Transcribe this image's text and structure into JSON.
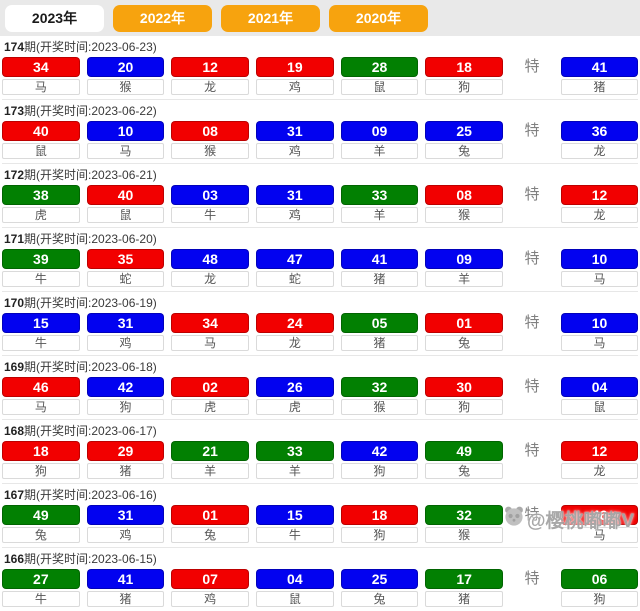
{
  "tabs": [
    {
      "label": "2023年",
      "active": true
    },
    {
      "label": "2022年",
      "active": false
    },
    {
      "label": "2021年",
      "active": false
    },
    {
      "label": "2020年",
      "active": false
    }
  ],
  "te_label": "特",
  "colors": {
    "red": "#f20000",
    "blue": "#0202f0",
    "green": "#028002",
    "tab": "#f7a30e",
    "tabbar_bg": "#e9e9e9"
  },
  "draws": [
    {
      "period": "174",
      "label": "期(开奖时间:2023-06-23)",
      "numbers": [
        {
          "value": "34",
          "color": "red",
          "zodiac": "马"
        },
        {
          "value": "20",
          "color": "blue",
          "zodiac": "猴"
        },
        {
          "value": "12",
          "color": "red",
          "zodiac": "龙"
        },
        {
          "value": "19",
          "color": "red",
          "zodiac": "鸡"
        },
        {
          "value": "28",
          "color": "green",
          "zodiac": "鼠"
        },
        {
          "value": "18",
          "color": "red",
          "zodiac": "狗"
        }
      ],
      "special": {
        "value": "41",
        "color": "blue",
        "zodiac": "猪"
      }
    },
    {
      "period": "173",
      "label": "期(开奖时间:2023-06-22)",
      "numbers": [
        {
          "value": "40",
          "color": "red",
          "zodiac": "鼠"
        },
        {
          "value": "10",
          "color": "blue",
          "zodiac": "马"
        },
        {
          "value": "08",
          "color": "red",
          "zodiac": "猴"
        },
        {
          "value": "31",
          "color": "blue",
          "zodiac": "鸡"
        },
        {
          "value": "09",
          "color": "blue",
          "zodiac": "羊"
        },
        {
          "value": "25",
          "color": "blue",
          "zodiac": "兔"
        }
      ],
      "special": {
        "value": "36",
        "color": "blue",
        "zodiac": "龙"
      }
    },
    {
      "period": "172",
      "label": "期(开奖时间:2023-06-21)",
      "numbers": [
        {
          "value": "38",
          "color": "green",
          "zodiac": "虎"
        },
        {
          "value": "40",
          "color": "red",
          "zodiac": "鼠"
        },
        {
          "value": "03",
          "color": "blue",
          "zodiac": "牛"
        },
        {
          "value": "31",
          "color": "blue",
          "zodiac": "鸡"
        },
        {
          "value": "33",
          "color": "green",
          "zodiac": "羊"
        },
        {
          "value": "08",
          "color": "red",
          "zodiac": "猴"
        }
      ],
      "special": {
        "value": "12",
        "color": "red",
        "zodiac": "龙"
      }
    },
    {
      "period": "171",
      "label": "期(开奖时间:2023-06-20)",
      "numbers": [
        {
          "value": "39",
          "color": "green",
          "zodiac": "牛"
        },
        {
          "value": "35",
          "color": "red",
          "zodiac": "蛇"
        },
        {
          "value": "48",
          "color": "blue",
          "zodiac": "龙"
        },
        {
          "value": "47",
          "color": "blue",
          "zodiac": "蛇"
        },
        {
          "value": "41",
          "color": "blue",
          "zodiac": "猪"
        },
        {
          "value": "09",
          "color": "blue",
          "zodiac": "羊"
        }
      ],
      "special": {
        "value": "10",
        "color": "blue",
        "zodiac": "马"
      }
    },
    {
      "period": "170",
      "label": "期(开奖时间:2023-06-19)",
      "numbers": [
        {
          "value": "15",
          "color": "blue",
          "zodiac": "牛"
        },
        {
          "value": "31",
          "color": "blue",
          "zodiac": "鸡"
        },
        {
          "value": "34",
          "color": "red",
          "zodiac": "马"
        },
        {
          "value": "24",
          "color": "red",
          "zodiac": "龙"
        },
        {
          "value": "05",
          "color": "green",
          "zodiac": "猪"
        },
        {
          "value": "01",
          "color": "red",
          "zodiac": "兔"
        }
      ],
      "special": {
        "value": "10",
        "color": "blue",
        "zodiac": "马"
      }
    },
    {
      "period": "169",
      "label": "期(开奖时间:2023-06-18)",
      "numbers": [
        {
          "value": "46",
          "color": "red",
          "zodiac": "马"
        },
        {
          "value": "42",
          "color": "blue",
          "zodiac": "狗"
        },
        {
          "value": "02",
          "color": "red",
          "zodiac": "虎"
        },
        {
          "value": "26",
          "color": "blue",
          "zodiac": "虎"
        },
        {
          "value": "32",
          "color": "green",
          "zodiac": "猴"
        },
        {
          "value": "30",
          "color": "red",
          "zodiac": "狗"
        }
      ],
      "special": {
        "value": "04",
        "color": "blue",
        "zodiac": "鼠"
      }
    },
    {
      "period": "168",
      "label": "期(开奖时间:2023-06-17)",
      "numbers": [
        {
          "value": "18",
          "color": "red",
          "zodiac": "狗"
        },
        {
          "value": "29",
          "color": "red",
          "zodiac": "猪"
        },
        {
          "value": "21",
          "color": "green",
          "zodiac": "羊"
        },
        {
          "value": "33",
          "color": "green",
          "zodiac": "羊"
        },
        {
          "value": "42",
          "color": "blue",
          "zodiac": "狗"
        },
        {
          "value": "49",
          "color": "green",
          "zodiac": "兔"
        }
      ],
      "special": {
        "value": "12",
        "color": "red",
        "zodiac": "龙"
      }
    },
    {
      "period": "167",
      "label": "期(开奖时间:2023-06-16)",
      "numbers": [
        {
          "value": "49",
          "color": "green",
          "zodiac": "兔"
        },
        {
          "value": "31",
          "color": "blue",
          "zodiac": "鸡"
        },
        {
          "value": "01",
          "color": "red",
          "zodiac": "兔"
        },
        {
          "value": "15",
          "color": "blue",
          "zodiac": "牛"
        },
        {
          "value": "18",
          "color": "red",
          "zodiac": "狗"
        },
        {
          "value": "32",
          "color": "green",
          "zodiac": "猴"
        }
      ],
      "special": {
        "value": "46",
        "color": "red",
        "zodiac": "马"
      }
    },
    {
      "period": "166",
      "label": "期(开奖时间:2023-06-15)",
      "numbers": [
        {
          "value": "27",
          "color": "green",
          "zodiac": "牛"
        },
        {
          "value": "41",
          "color": "blue",
          "zodiac": "猪"
        },
        {
          "value": "07",
          "color": "red",
          "zodiac": "鸡"
        },
        {
          "value": "04",
          "color": "blue",
          "zodiac": "鼠"
        },
        {
          "value": "25",
          "color": "blue",
          "zodiac": "兔"
        },
        {
          "value": "17",
          "color": "green",
          "zodiac": "猪"
        }
      ],
      "special": {
        "value": "06",
        "color": "green",
        "zodiac": "狗"
      }
    }
  ],
  "watermark": {
    "text": "@樱桃嘟嘟V"
  }
}
